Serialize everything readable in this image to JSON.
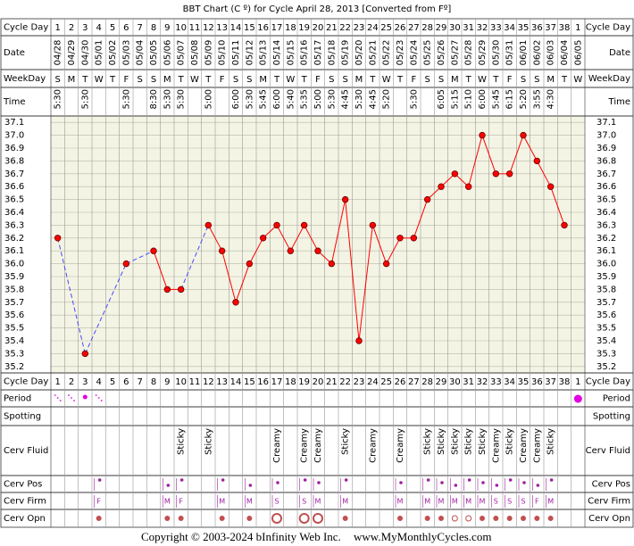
{
  "chart_data": {
    "type": "line",
    "title": "BBT Chart (C º) for Cycle April 28, 2013  [Converted from Fº]",
    "row_labels": {
      "cycle_day": "Cycle Day",
      "date": "Date",
      "weekday": "WeekDay",
      "time": "Time",
      "period": "Period",
      "spotting": "Spotting",
      "cerv_fluid": "Cerv Fluid",
      "cerv_pos": "Cerv Pos",
      "cerv_firm": "Cerv Firm",
      "cerv_opn": "Cerv Opn"
    },
    "cycle_days": [
      1,
      2,
      3,
      4,
      5,
      6,
      7,
      8,
      9,
      10,
      11,
      12,
      13,
      14,
      15,
      16,
      17,
      18,
      19,
      20,
      21,
      22,
      23,
      24,
      25,
      26,
      27,
      28,
      29,
      30,
      31,
      32,
      33,
      34,
      35,
      36,
      37,
      38,
      1
    ],
    "dates": [
      "04/28",
      "04/29",
      "04/30",
      "05/01",
      "05/02",
      "05/03",
      "05/04",
      "05/05",
      "05/06",
      "05/07",
      "05/08",
      "05/09",
      "05/10",
      "05/11",
      "05/12",
      "05/13",
      "05/14",
      "05/15",
      "05/16",
      "05/17",
      "05/18",
      "05/19",
      "05/20",
      "05/21",
      "05/22",
      "05/23",
      "05/24",
      "05/25",
      "05/26",
      "05/27",
      "05/28",
      "05/29",
      "05/30",
      "05/31",
      "06/01",
      "06/02",
      "06/03",
      "06/04",
      "06/05"
    ],
    "weekdays": [
      "S",
      "M",
      "T",
      "W",
      "T",
      "F",
      "S",
      "S",
      "M",
      "T",
      "W",
      "T",
      "F",
      "S",
      "S",
      "M",
      "T",
      "W",
      "T",
      "F",
      "S",
      "S",
      "M",
      "T",
      "W",
      "T",
      "F",
      "S",
      "S",
      "M",
      "T",
      "W",
      "T",
      "F",
      "S",
      "S",
      "M",
      "T",
      "W"
    ],
    "times": [
      "5:30",
      null,
      "5:30",
      null,
      null,
      "5:30",
      null,
      "8:30",
      "5:30",
      "5:30",
      null,
      "5:00",
      null,
      "6:00",
      "5:30",
      "5:45",
      "6:00",
      "5:40",
      "5:35",
      "5:00",
      "5:30",
      "4:45",
      "5:30",
      "4:45",
      "5:20",
      null,
      "5:30",
      null,
      "6:05",
      "5:15",
      "5:10",
      "6:00",
      "5:45",
      "6:15",
      "5:20",
      "3:55",
      "4:30",
      null,
      null
    ],
    "series": [
      {
        "color": "#ff0000",
        "values": [
          36.2,
          null,
          35.3,
          null,
          null,
          36.0,
          null,
          36.1,
          35.8,
          35.8,
          null,
          36.3,
          36.1,
          35.7,
          36.0,
          36.2,
          36.3,
          36.1,
          36.3,
          36.1,
          36.0,
          36.5,
          35.4,
          36.3,
          36.0,
          36.2,
          36.2,
          36.5,
          36.6,
          36.7,
          36.6,
          37.0,
          36.7,
          36.7,
          37.0,
          36.8,
          36.6,
          36.3,
          null
        ]
      }
    ],
    "ylim": [
      35.15,
      37.15
    ],
    "yticks": [
      37.1,
      {
        "value": 37,
        "label": "37.0"
      },
      36.9,
      36.8,
      36.7,
      36.6,
      36.5,
      36.4,
      36.3,
      36.2,
      36.1,
      {
        "value": 36,
        "label": "36.0"
      },
      35.9,
      35.8,
      35.7,
      35.6,
      35.5,
      35.4,
      35.3,
      35.2
    ],
    "cerv_fluid": [
      null,
      null,
      null,
      null,
      null,
      null,
      null,
      null,
      null,
      "Sticky",
      null,
      "Sticky",
      null,
      null,
      null,
      null,
      "Creamy",
      null,
      "Creamy",
      "Creamy",
      null,
      "Sticky",
      null,
      "Creamy",
      null,
      "Creamy",
      null,
      "Sticky",
      "Sticky",
      "Sticky",
      "Sticky",
      "Sticky",
      "Creamy",
      "Sticky",
      "Creamy",
      "Creamy",
      "Sticky",
      null,
      null
    ],
    "cerv_firm": [
      null,
      null,
      null,
      "F",
      null,
      null,
      null,
      null,
      "M",
      "F",
      null,
      null,
      "M",
      null,
      "M",
      null,
      "S",
      null,
      "S",
      "M",
      null,
      "M",
      null,
      null,
      null,
      "M",
      null,
      "M",
      "M",
      "M",
      "M",
      "M",
      "S",
      "S",
      "S",
      "F",
      "M",
      null,
      null
    ],
    "copyright": "Copyright © 2003-2024 bInfinity Web Inc.",
    "website": "www.MyMonthlyCycles.com"
  }
}
